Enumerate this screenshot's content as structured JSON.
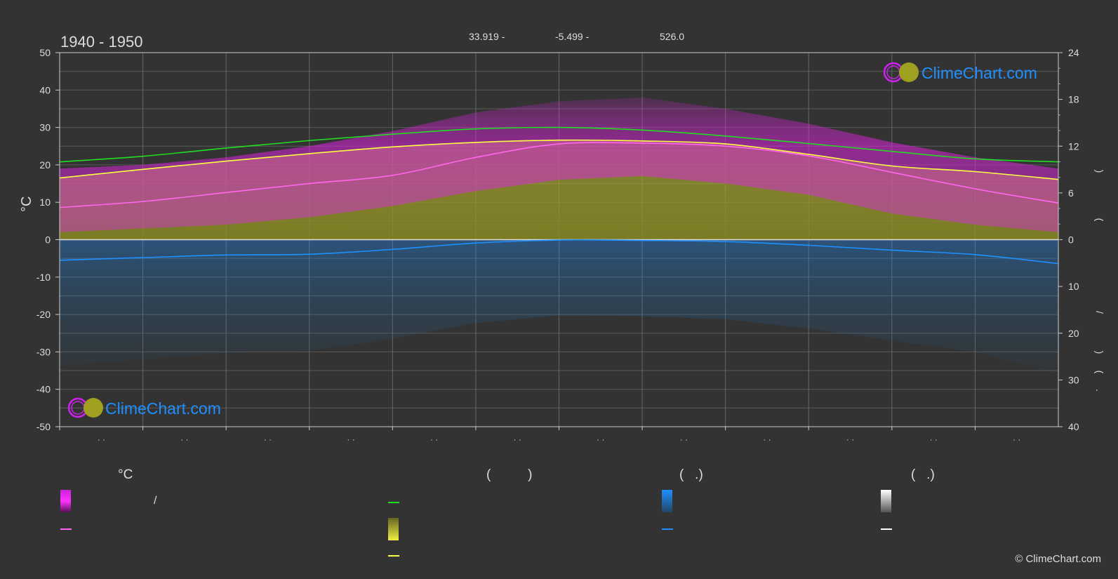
{
  "header": {
    "title": "1940 - 1950",
    "lat": "33.919 -",
    "lon": "-5.499 -",
    "elevation": "526.0"
  },
  "logo": {
    "text": "ClimeChart.com"
  },
  "copyright": "© ClimeChart.com",
  "colors": {
    "background": "#333333",
    "daylight": "#22dd22",
    "sunshine": "#ffff44",
    "max_temp_band": "#ee22ee",
    "mean_temp": "#ff66ee",
    "sunshine_band": "#aaaa22",
    "precip": "#1e90ff",
    "snow": "#ffffff",
    "logo": "#1e90ff"
  },
  "legend": {
    "col1_head": "°C",
    "col2_head": "(          )",
    "col3_head": "(   .)",
    "col4_head": "(   .)",
    "slash": "/"
  },
  "chart_data": {
    "type": "area",
    "title": "1940 - 1950",
    "ylabel": "°C",
    "ylim": [
      -50,
      50
    ],
    "yticks_left": [
      "50",
      "40",
      "30",
      "20",
      "10",
      "0",
      "-10",
      "-20",
      "-30",
      "-40",
      "-50"
    ],
    "y2_upper_lim": [
      0,
      24
    ],
    "y2_upper_ticks": [
      "24",
      "18",
      "12",
      "6",
      "0"
    ],
    "y2_lower_lim": [
      0,
      40
    ],
    "y2_lower_ticks": [
      "10",
      "20",
      "30",
      "40"
    ],
    "y2_labels": [
      ")",
      "(",
      "/",
      ")",
      "(",
      "."
    ],
    "month_ticks": [
      "· ·",
      "· ·",
      "· ·",
      "· ·",
      "· ·",
      "· ·",
      "· ·",
      "· ·",
      "· ·",
      "· ·",
      "· ·",
      "· ·"
    ],
    "x": [
      0,
      1,
      2,
      3,
      4,
      5,
      6,
      7,
      8,
      9,
      10,
      11,
      12
    ],
    "series": [
      {
        "key": "daylight",
        "values": [
          20.8,
          22.3,
          24.5,
          26.5,
          28.2,
          29.6,
          30.0,
          29.3,
          27.7,
          25.7,
          23.6,
          21.6,
          20.8
        ],
        "axis": "temp"
      },
      {
        "key": "sunshine",
        "values": [
          16.5,
          18.8,
          21.0,
          23.0,
          24.8,
          26.0,
          26.6,
          26.4,
          25.6,
          22.8,
          19.7,
          18.2,
          16.1
        ],
        "axis": "temp"
      },
      {
        "key": "mean_temp",
        "values": [
          8.6,
          10.2,
          12.6,
          15.0,
          17.2,
          22.0,
          25.6,
          25.8,
          25.0,
          22.4,
          18.0,
          13.6,
          9.8
        ],
        "axis": "temp"
      },
      {
        "key": "precip",
        "values": [
          5.5,
          4.8,
          4.1,
          3.9,
          2.6,
          0.9,
          0.1,
          0.2,
          0.5,
          1.5,
          2.8,
          4.0,
          6.4
        ],
        "axis": "precip_cm"
      },
      {
        "key": "max_band_top",
        "values": [
          19,
          20,
          22,
          25,
          29,
          34,
          37,
          38,
          35,
          31,
          26,
          22,
          19
        ],
        "axis": "temp"
      },
      {
        "key": "min_band_bottom",
        "values": [
          2,
          3,
          4,
          6,
          9,
          13,
          16,
          17,
          15,
          12,
          7,
          4,
          2
        ],
        "axis": "temp"
      }
    ]
  }
}
